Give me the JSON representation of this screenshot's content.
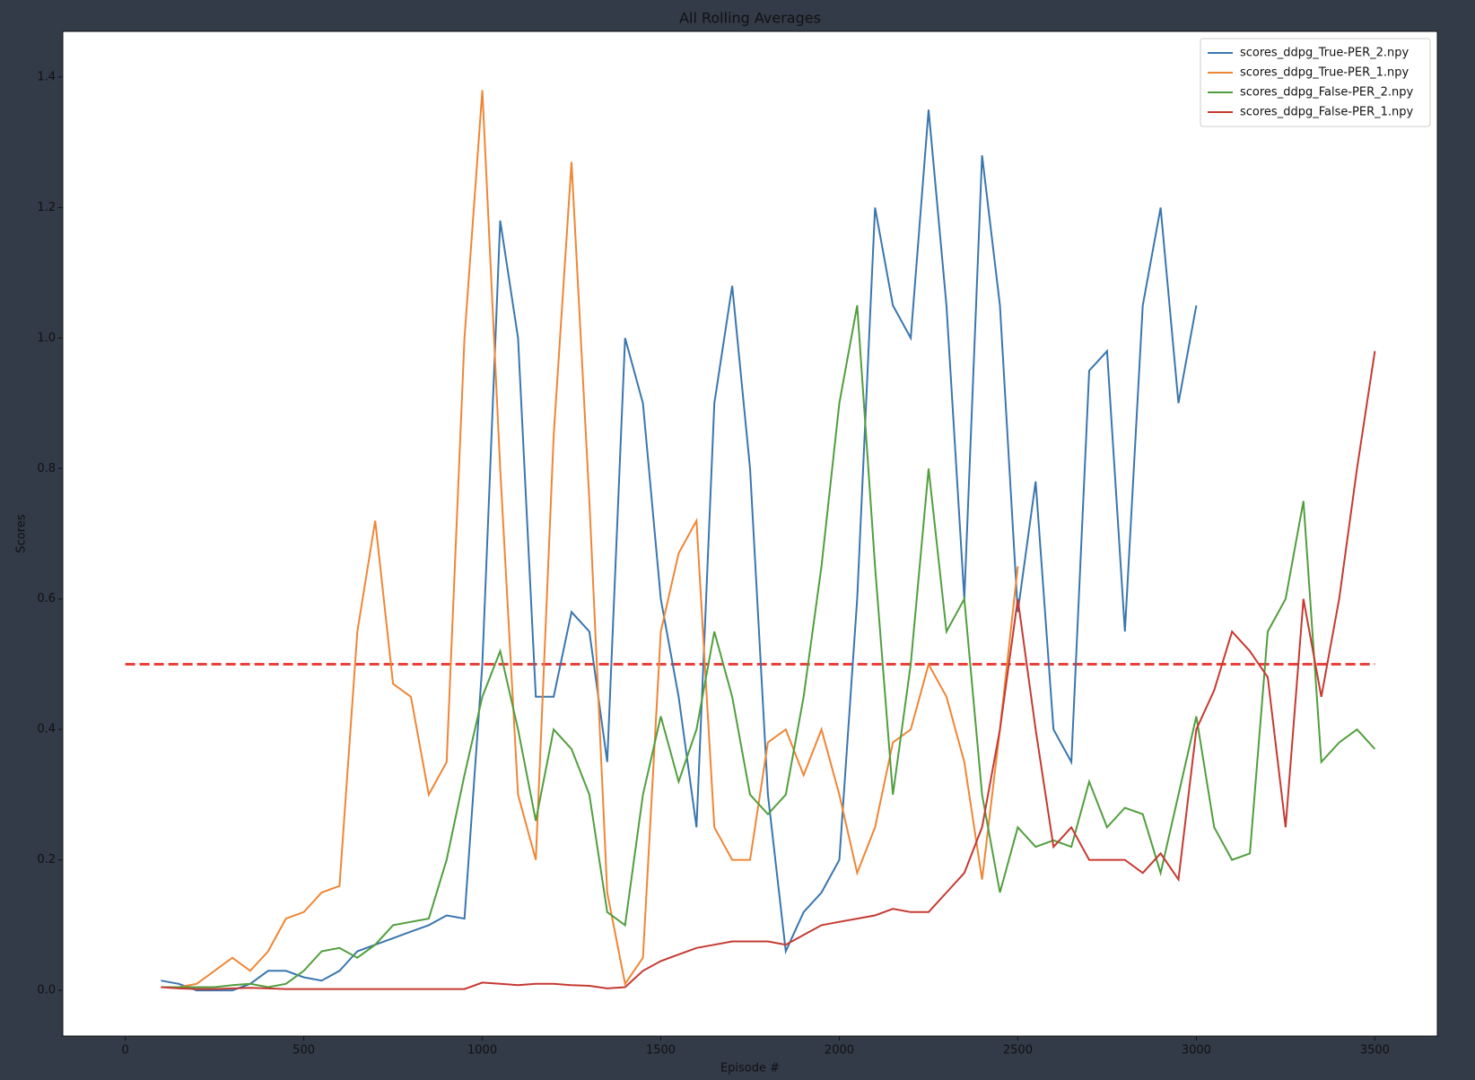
{
  "chart_data": {
    "type": "line",
    "title": "All Rolling Averages",
    "xlabel": "Episode #",
    "ylabel": "Scores",
    "x": [
      100,
      150,
      200,
      250,
      300,
      350,
      400,
      450,
      500,
      550,
      600,
      650,
      700,
      750,
      800,
      850,
      900,
      950,
      1000,
      1050,
      1100,
      1150,
      1200,
      1250,
      1300,
      1350,
      1400,
      1450,
      1500,
      1550,
      1600,
      1650,
      1700,
      1750,
      1800,
      1850,
      1900,
      1950,
      2000,
      2050,
      2100,
      2150,
      2200,
      2250,
      2300,
      2350,
      2400,
      2450,
      2500,
      2550,
      2600,
      2650,
      2700,
      2750,
      2800,
      2850,
      2900,
      2950,
      3000,
      3050,
      3100,
      3150,
      3200,
      3250,
      3300,
      3350,
      3400,
      3450,
      3500
    ],
    "series": [
      {
        "name": "scores_ddpg_True-PER_2.npy",
        "color": "#3a76af",
        "values": [
          0.015,
          0.01,
          0.0,
          0.0,
          0.0,
          0.01,
          0.03,
          0.03,
          0.02,
          0.015,
          0.03,
          0.06,
          0.07,
          0.08,
          0.09,
          0.1,
          0.115,
          0.11,
          0.5,
          1.18,
          1.0,
          0.45,
          0.45,
          0.58,
          0.55,
          0.35,
          1.0,
          0.9,
          0.6,
          0.45,
          0.25,
          0.9,
          1.08,
          0.8,
          0.3,
          0.06,
          0.12,
          0.15,
          0.2,
          0.6,
          1.2,
          1.05,
          1.0,
          1.35,
          1.05,
          0.6,
          1.28,
          1.05,
          0.58,
          0.78,
          0.4,
          0.35,
          0.95,
          0.98,
          0.55,
          1.05,
          1.2,
          0.9,
          1.05,
          null,
          null,
          null,
          null,
          null,
          null,
          null,
          null,
          null,
          null
        ]
      },
      {
        "name": "scores_ddpg_True-PER_1.npy",
        "color": "#ef8636",
        "values": [
          0.005,
          0.005,
          0.01,
          0.03,
          0.05,
          0.03,
          0.06,
          0.11,
          0.12,
          0.15,
          0.16,
          0.55,
          0.72,
          0.47,
          0.45,
          0.3,
          0.35,
          1.0,
          1.38,
          0.8,
          0.3,
          0.2,
          0.85,
          1.27,
          0.75,
          0.15,
          0.01,
          0.05,
          0.55,
          0.67,
          0.72,
          0.25,
          0.2,
          0.2,
          0.38,
          0.4,
          0.33,
          0.4,
          0.3,
          0.18,
          0.25,
          0.38,
          0.4,
          0.5,
          0.45,
          0.35,
          0.17,
          0.4,
          0.65,
          null,
          null,
          null,
          null,
          null,
          null,
          null,
          null,
          null,
          null,
          null,
          null,
          null,
          null,
          null,
          null,
          null,
          null,
          null,
          null
        ]
      },
      {
        "name": "scores_ddpg_False-PER_2.npy",
        "color": "#519e3e",
        "values": [
          0.005,
          0.005,
          0.005,
          0.005,
          0.008,
          0.01,
          0.005,
          0.01,
          0.03,
          0.06,
          0.065,
          0.05,
          0.07,
          0.1,
          0.105,
          0.11,
          0.2,
          0.33,
          0.45,
          0.52,
          0.4,
          0.26,
          0.4,
          0.37,
          0.3,
          0.12,
          0.1,
          0.3,
          0.42,
          0.32,
          0.4,
          0.55,
          0.45,
          0.3,
          0.27,
          0.3,
          0.45,
          0.65,
          0.9,
          1.05,
          0.65,
          0.3,
          0.5,
          0.8,
          0.55,
          0.6,
          0.3,
          0.15,
          0.25,
          0.22,
          0.23,
          0.22,
          0.32,
          0.25,
          0.28,
          0.27,
          0.18,
          0.3,
          0.42,
          0.25,
          0.2,
          0.21,
          0.55,
          0.6,
          0.75,
          0.35,
          0.38,
          0.4,
          0.37
        ]
      },
      {
        "name": "scores_ddpg_False-PER_1.npy",
        "color": "#c53a32",
        "values": [
          0.005,
          0.003,
          0.002,
          0.002,
          0.003,
          0.004,
          0.003,
          0.002,
          0.002,
          0.002,
          0.002,
          0.002,
          0.002,
          0.002,
          0.002,
          0.002,
          0.002,
          0.002,
          0.012,
          0.01,
          0.008,
          0.01,
          0.01,
          0.008,
          0.007,
          0.003,
          0.005,
          0.03,
          0.045,
          0.055,
          0.065,
          0.07,
          0.075,
          0.075,
          0.075,
          0.07,
          0.085,
          0.1,
          0.105,
          0.11,
          0.115,
          0.125,
          0.12,
          0.12,
          0.15,
          0.18,
          0.25,
          0.4,
          0.6,
          0.4,
          0.22,
          0.25,
          0.2,
          0.2,
          0.2,
          0.18,
          0.21,
          0.17,
          0.4,
          0.46,
          0.55,
          0.52,
          0.48,
          0.25,
          0.6,
          0.45,
          0.6,
          0.8,
          0.98
        ]
      }
    ],
    "hlines": [
      {
        "y": 0.5,
        "xmin": 0,
        "xmax": 3500,
        "color": "#e8403a",
        "style": "dashed"
      }
    ],
    "xlim": [
      -175,
      3675
    ],
    "ylim": [
      -0.07,
      1.47
    ],
    "xticks": [
      0,
      500,
      1000,
      1500,
      2000,
      2500,
      3000,
      3500
    ],
    "yticks": [
      {
        "value": 0,
        "label": "0.0"
      },
      0.2,
      0.4,
      0.6,
      0.8,
      {
        "value": 1,
        "label": "1.0"
      },
      1.2,
      1.4
    ],
    "legend": "upper right",
    "grid": false
  }
}
